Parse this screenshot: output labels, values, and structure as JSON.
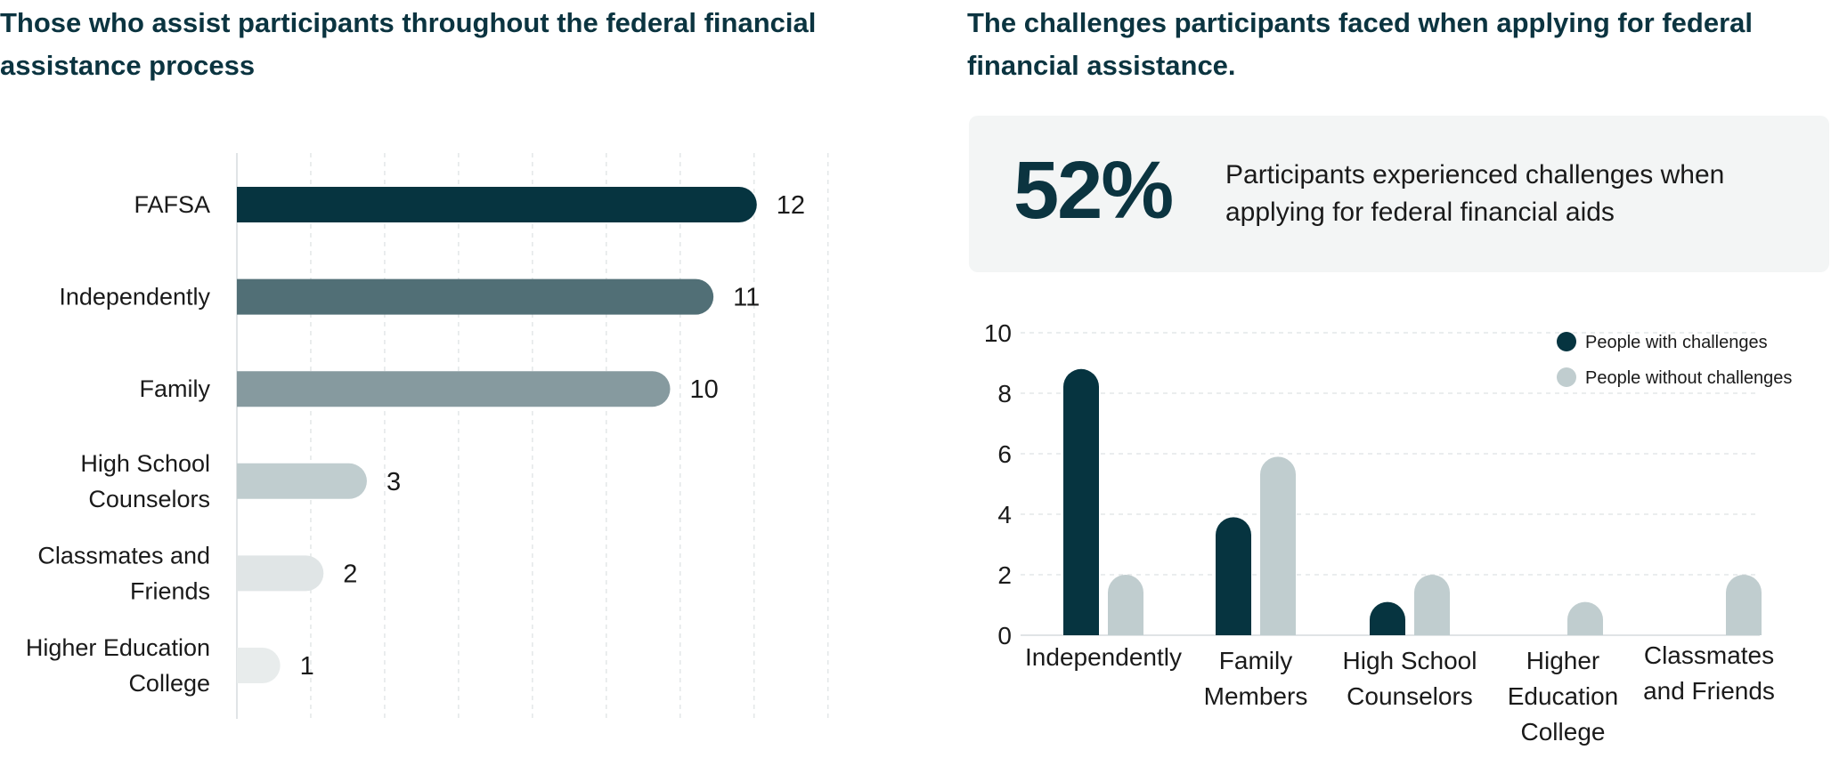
{
  "left_title": "Those who assist participants throughout the federal financial assistance process",
  "right_title": "The challenges participants faced when applying for federal financial assistance.",
  "stat": {
    "value": "52%",
    "text": "Participants experienced challenges when applying for federal financial aids"
  },
  "colors": {
    "dark": "#063440",
    "mid_dark": "#516f76",
    "mid": "#869a9f",
    "light": "#c0cdcf",
    "lighter": "#e0e5e6",
    "lightest": "#e8ecec"
  },
  "chart_data": [
    {
      "type": "bar",
      "orientation": "horizontal",
      "title": "Those who assist participants throughout the federal financial assistance process",
      "categories": [
        [
          "FAFSA"
        ],
        [
          "Independently"
        ],
        [
          "Family"
        ],
        [
          "High School",
          "Counselors"
        ],
        [
          "Classmates and",
          "Friends"
        ],
        [
          "Higher Education",
          "College"
        ]
      ],
      "values": [
        12,
        11,
        10,
        3,
        2,
        1
      ],
      "bar_colors": [
        "#063440",
        "#516f76",
        "#869a9f",
        "#c0cdcf",
        "#e0e5e6",
        "#e8ecec"
      ],
      "xlim": [
        0,
        12
      ],
      "grid": true
    },
    {
      "type": "bar",
      "orientation": "vertical",
      "categories": [
        [
          "Independently"
        ],
        [
          "Family",
          "Members"
        ],
        [
          "High School",
          "Counselors"
        ],
        [
          "Higher",
          "Education",
          "College"
        ],
        [
          "Classmates",
          "and Friends"
        ]
      ],
      "series": [
        {
          "name": "People with challenges",
          "color": "#063440",
          "values": [
            8.8,
            3.9,
            1.1,
            0,
            0
          ]
        },
        {
          "name": "People without challenges",
          "color": "#c0cdcf",
          "values": [
            2.0,
            5.9,
            2.0,
            1.1,
            2.0
          ]
        }
      ],
      "ylim": [
        0,
        10
      ],
      "yticks": [
        "0",
        "2",
        "4",
        "6",
        "8",
        "10"
      ],
      "grid": true,
      "legend_position": "top-right"
    }
  ]
}
